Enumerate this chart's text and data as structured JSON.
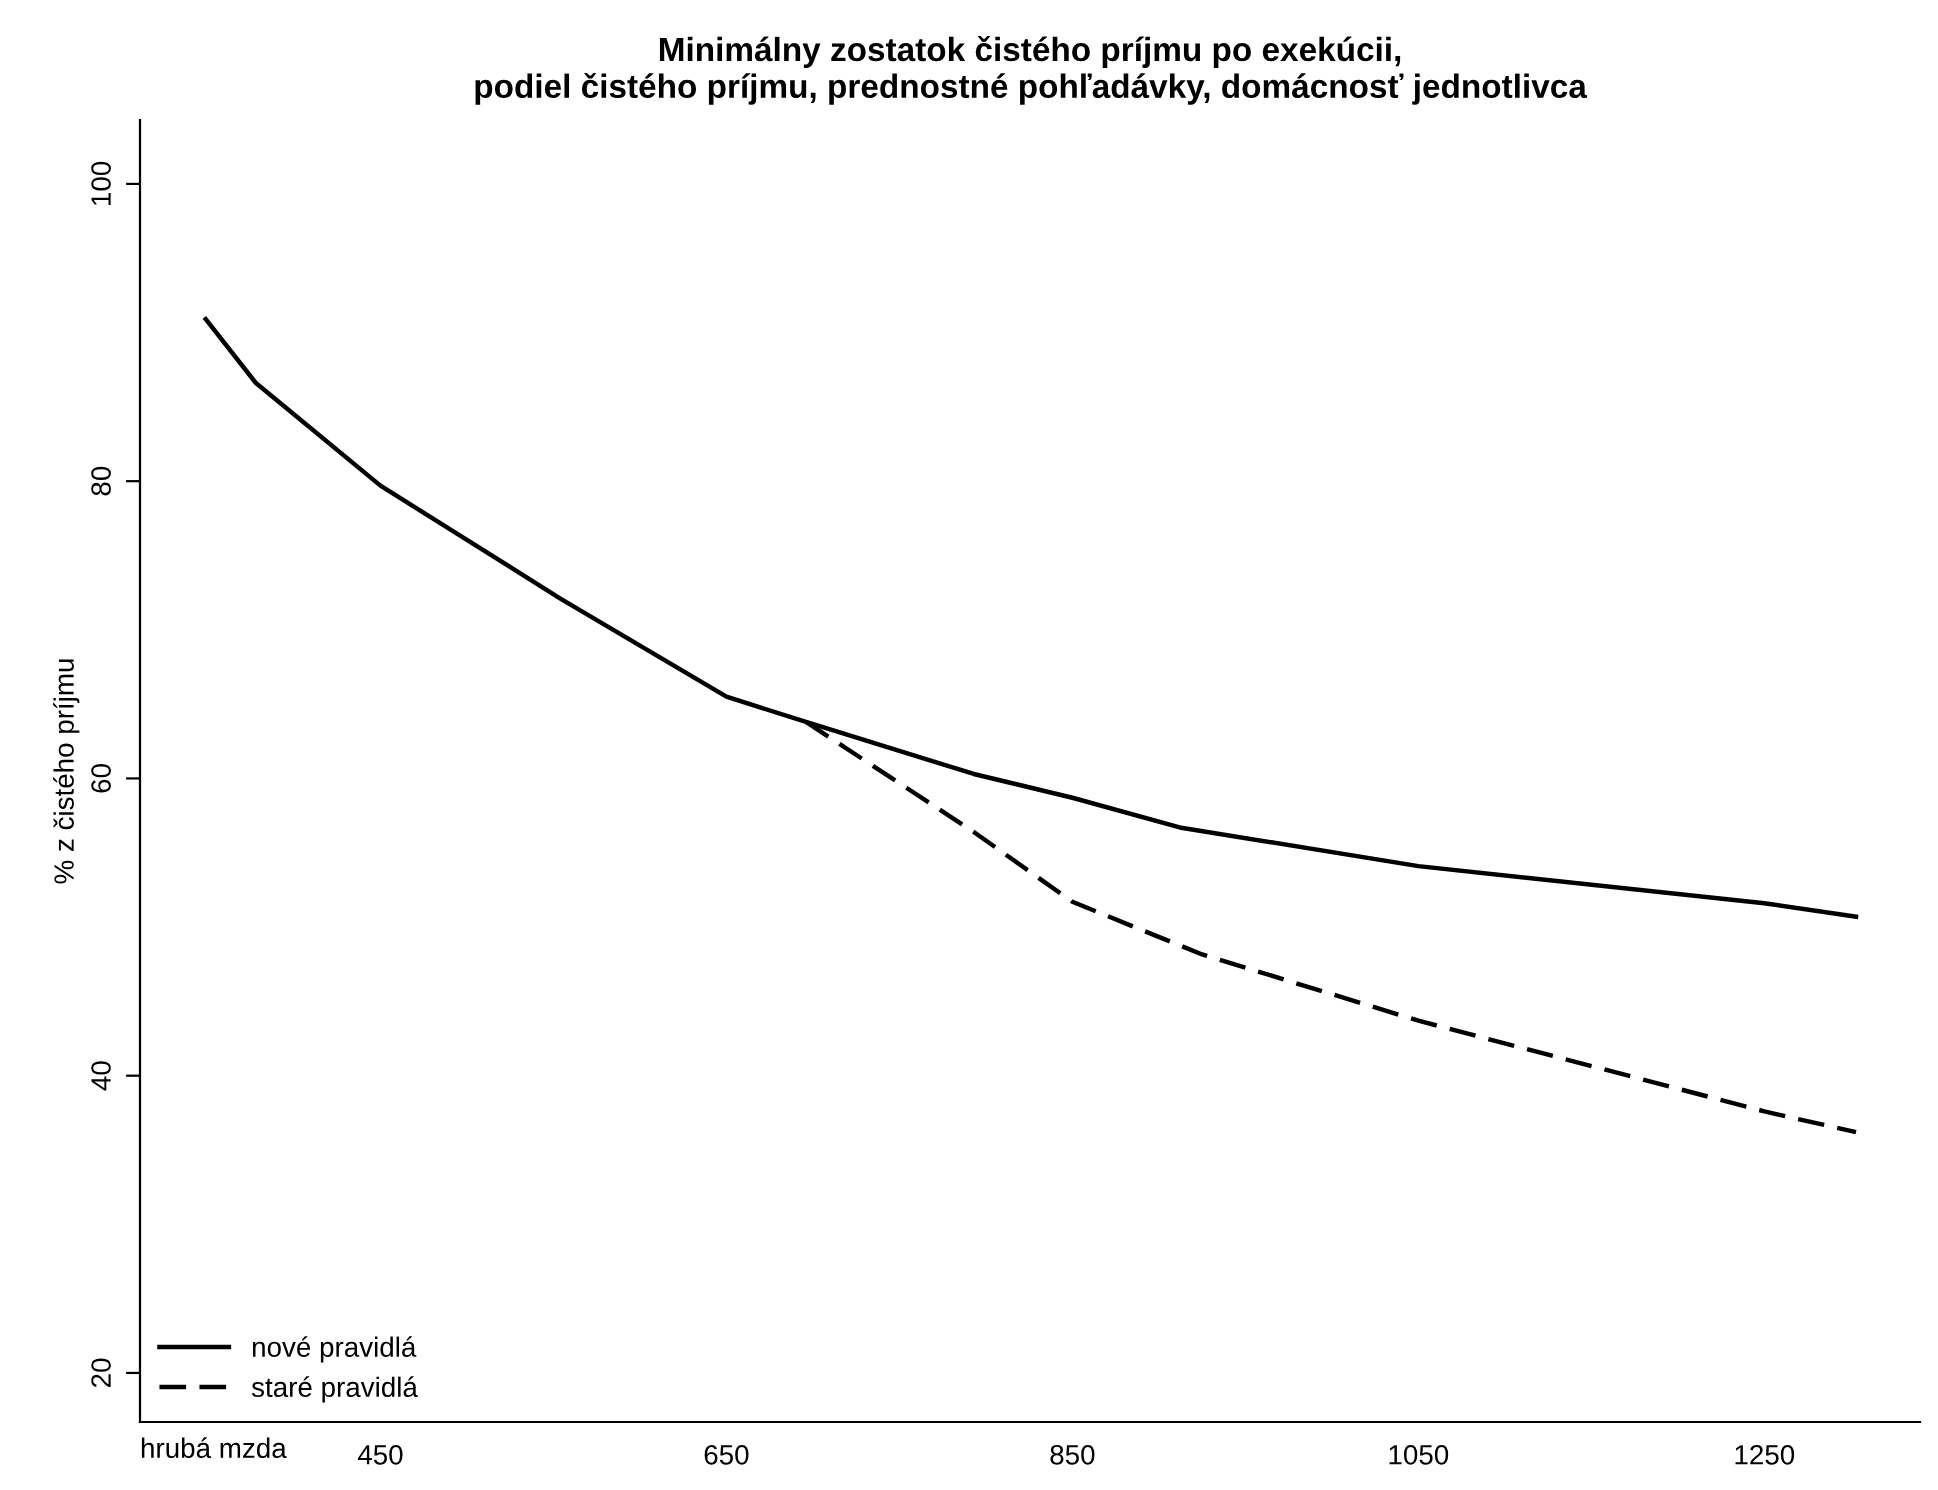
{
  "chart_data": {
    "type": "line",
    "title": "Minimálny zostatok čistého príjmu po exekúcii,\npodiel čistého príjmu, prednostné pohľadávky, domácnosť jednotlivca",
    "xlabel": "hrubá mzda",
    "ylabel": "% z čistého príjmu",
    "xlim": [
      311,
      1340
    ],
    "xticks": [
      450,
      650,
      850,
      1050,
      1250
    ],
    "ylim": [
      16.7,
      104.3
    ],
    "yticks": [
      20,
      40,
      60,
      80,
      100
    ],
    "grid": false,
    "legend": "bottom left",
    "marker": "none",
    "series": [
      {
        "name": "nové pravidlá",
        "color": "#000000",
        "line_style": "solid",
        "x": [
          349,
          378,
          450,
          554,
          650,
          696,
          793,
          850,
          912,
          1050,
          1250,
          1303
        ],
        "values": [
          90.9,
          86.6,
          79.7,
          72.1,
          65.5,
          63.8,
          60.3,
          58.7,
          56.7,
          54.1,
          51.6,
          50.7
        ]
      },
      {
        "name": "staré pravidlá",
        "color": "#000000",
        "line_style": "dashed",
        "x": [
          696,
          793,
          850,
          924,
          1050,
          1155,
          1250,
          1303
        ],
        "values": [
          63.8,
          56.4,
          51.7,
          48.2,
          43.7,
          40.5,
          37.6,
          36.2
        ]
      }
    ]
  }
}
